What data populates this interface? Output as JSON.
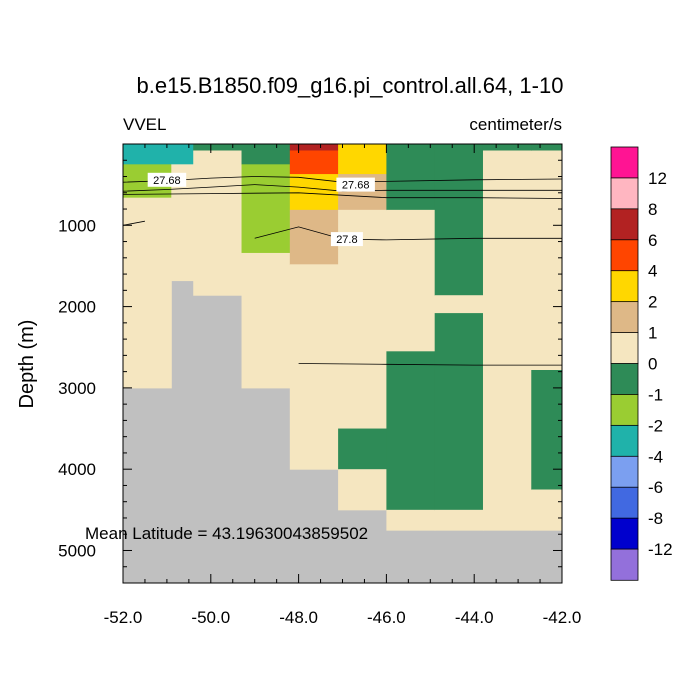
{
  "chart_data": {
    "type": "heatmap",
    "title": "b.e15.B1850.f09_g16.pi_control.all.64, 1-10",
    "left_label": "VVEL",
    "right_label": "centimeter/s",
    "ylabel": "Depth (m)",
    "xlabel": "",
    "xlim": [
      -52.0,
      -42.0
    ],
    "ylim": [
      5400,
      0
    ],
    "x_ticks": [
      -52.0,
      -50.0,
      -48.0,
      -46.0,
      -44.0,
      -42.0
    ],
    "x_tick_labels": [
      "-52.0",
      "-50.0",
      "-48.0",
      "-46.0",
      "-44.0",
      "-42.0"
    ],
    "y_ticks": [
      1000,
      2000,
      3000,
      4000,
      5000
    ],
    "y_tick_labels": [
      "1000",
      "2000",
      "3000",
      "4000",
      "5000"
    ],
    "annotation": "Mean Latitude = 43.19630043859502",
    "colorbar": {
      "labels": [
        "12",
        "8",
        "6",
        "4",
        "2",
        "1",
        "0",
        "-1",
        "-2",
        "-4",
        "-6",
        "-8",
        "-12"
      ],
      "colors_top_to_bottom": [
        "#ff1493",
        "#ffb6c1",
        "#b22222",
        "#ff4500",
        "#ffd700",
        "#deb887",
        "#f5e6c0",
        "#2e8b57",
        "#9acd32",
        "#20b2aa",
        "#7b9ff0",
        "#4169e1",
        "#0000cd",
        "#9370db"
      ]
    },
    "color_scale": {
      "lt_m8": "#0000cd",
      "m8_m6": "#4169e1",
      "m6_m4": "#7b9ff0",
      "m4_m2": "#20b2aa",
      "m2_m1": "#9acd32",
      "m1_0": "#2e8b57",
      "0_1": "#f5e6c0",
      "1_2": "#deb887",
      "2_4": "#ffd700",
      "4_6": "#ff4500",
      "6_8": "#b22222",
      "land": "#c0c0c0"
    },
    "columns": [
      {
        "x0": -52.0,
        "x1": -50.9,
        "bottom": 3000,
        "segments": [
          [
            0,
            250,
            "m4_m2"
          ],
          [
            250,
            660,
            "m2_m1"
          ],
          [
            660,
            3000,
            "0_1"
          ]
        ]
      },
      {
        "x0": -50.9,
        "x1": -50.4,
        "bottom": 1680,
        "segments": [
          [
            0,
            250,
            "m4_m2"
          ],
          [
            250,
            1680,
            "0_1"
          ]
        ]
      },
      {
        "x0": -50.4,
        "x1": -49.3,
        "bottom": 1860,
        "segments": [
          [
            0,
            80,
            "m1_0"
          ],
          [
            80,
            250,
            "0_1"
          ],
          [
            250,
            1860,
            "0_1"
          ]
        ]
      },
      {
        "x0": -49.3,
        "x1": -48.2,
        "bottom": 3000,
        "segments": [
          [
            0,
            250,
            "m1_0"
          ],
          [
            250,
            1340,
            "m2_m1"
          ],
          [
            1340,
            3000,
            "0_1"
          ]
        ]
      },
      {
        "x0": -48.2,
        "x1": -47.1,
        "bottom": 4000,
        "segments": [
          [
            0,
            80,
            "6_8"
          ],
          [
            80,
            370,
            "4_6"
          ],
          [
            370,
            810,
            "2_4"
          ],
          [
            810,
            1480,
            "1_2"
          ],
          [
            1480,
            4000,
            "0_1"
          ]
        ]
      },
      {
        "x0": -47.1,
        "x1": -46.0,
        "bottom": 4500,
        "segments": [
          [
            0,
            370,
            "2_4"
          ],
          [
            370,
            810,
            "1_2"
          ],
          [
            810,
            3500,
            "0_1"
          ],
          [
            3500,
            4000,
            "m1_0"
          ],
          [
            4000,
            4500,
            "0_1"
          ]
        ]
      },
      {
        "x0": -46.0,
        "x1": -44.9,
        "bottom": 4750,
        "segments": [
          [
            0,
            810,
            "m1_0"
          ],
          [
            810,
            2550,
            "0_1"
          ],
          [
            2550,
            4500,
            "m1_0"
          ],
          [
            4500,
            4750,
            "0_1"
          ]
        ]
      },
      {
        "x0": -44.9,
        "x1": -43.8,
        "bottom": 4750,
        "segments": [
          [
            0,
            1860,
            "m1_0"
          ],
          [
            1860,
            2080,
            "0_1"
          ],
          [
            2080,
            4500,
            "m1_0"
          ],
          [
            4500,
            4750,
            "0_1"
          ]
        ]
      },
      {
        "x0": -43.8,
        "x1": -42.7,
        "bottom": 4750,
        "segments": [
          [
            0,
            80,
            "m1_0"
          ],
          [
            80,
            4750,
            "0_1"
          ]
        ]
      },
      {
        "x0": -42.7,
        "x1": -42.0,
        "bottom": 4750,
        "segments": [
          [
            0,
            80,
            "m1_0"
          ],
          [
            80,
            2780,
            "0_1"
          ],
          [
            2780,
            4250,
            "m1_0"
          ],
          [
            4250,
            4750,
            "0_1"
          ]
        ]
      }
    ],
    "contours": [
      {
        "label": "27.68",
        "label_x": -51.0,
        "label_y": 440,
        "points": [
          [
            -52.0,
            470
          ],
          [
            -51.0,
            450
          ],
          [
            -50.0,
            420
          ],
          [
            -49.0,
            400
          ],
          [
            -48.0,
            410
          ],
          [
            -47.0,
            470
          ],
          [
            -46.0,
            460
          ],
          [
            -44.0,
            440
          ],
          [
            -42.0,
            430
          ]
        ]
      },
      {
        "label": "27.68",
        "label_x": -46.7,
        "label_y": 500,
        "points": [
          [
            -52.0,
            580
          ],
          [
            -51.0,
            560
          ],
          [
            -50.0,
            530
          ],
          [
            -49.0,
            500
          ],
          [
            -48.0,
            530
          ],
          [
            -47.0,
            580
          ],
          [
            -46.0,
            570
          ],
          [
            -44.0,
            570
          ],
          [
            -42.0,
            570
          ]
        ]
      },
      {
        "label": "",
        "label_x": -42.0,
        "label_y": 700,
        "points": [
          [
            -52.0,
            620
          ],
          [
            -50.0,
            610
          ],
          [
            -48.0,
            600
          ],
          [
            -46.0,
            660
          ],
          [
            -44.0,
            660
          ],
          [
            -42.0,
            670
          ]
        ]
      },
      {
        "label": "27.8",
        "label_x": -46.9,
        "label_y": 1170,
        "points": [
          [
            -49.0,
            1160
          ],
          [
            -48.0,
            1020
          ],
          [
            -47.0,
            1170
          ],
          [
            -46.0,
            1180
          ],
          [
            -44.0,
            1160
          ],
          [
            -42.0,
            1160
          ]
        ]
      },
      {
        "label": "",
        "label_x": -51.8,
        "label_y": 1000,
        "points": [
          [
            -52.0,
            1000
          ],
          [
            -51.5,
            950
          ]
        ]
      },
      {
        "label": "",
        "label_x": -48.0,
        "label_y": 2700,
        "points": [
          [
            -48.0,
            2700
          ],
          [
            -46.0,
            2710
          ],
          [
            -44.0,
            2720
          ],
          [
            -42.0,
            2720
          ]
        ]
      }
    ]
  }
}
